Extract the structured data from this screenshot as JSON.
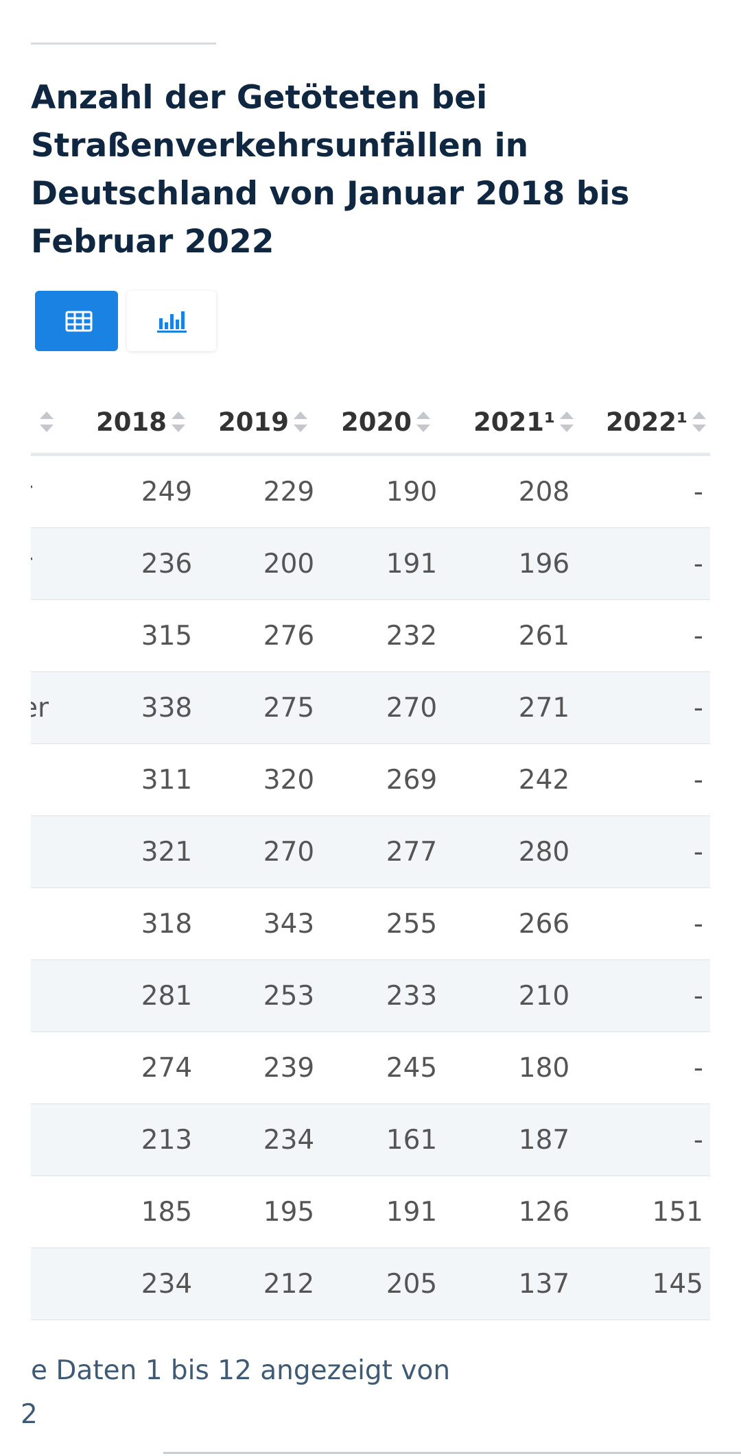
{
  "title": "Anzahl der Getöteten bei Straßenverkehrsunfällen in Deutschland von Januar 2018 bis Februar 2022",
  "table": {
    "headers": [
      "2018",
      "2019",
      "2020",
      "2021¹",
      "2022¹"
    ],
    "rows": [
      {
        "label": "r",
        "values": [
          "249",
          "229",
          "190",
          "208",
          "-"
        ]
      },
      {
        "label": "r",
        "values": [
          "236",
          "200",
          "191",
          "196",
          "-"
        ]
      },
      {
        "values": [
          "315",
          "276",
          "232",
          "261",
          "-"
        ]
      },
      {
        "label": "er",
        "values": [
          "338",
          "275",
          "270",
          "271",
          "-"
        ]
      },
      {
        "values": [
          "311",
          "320",
          "269",
          "242",
          "-"
        ]
      },
      {
        "values": [
          "321",
          "270",
          "277",
          "280",
          "-"
        ]
      },
      {
        "values": [
          "318",
          "343",
          "255",
          "266",
          "-"
        ]
      },
      {
        "values": [
          "281",
          "253",
          "233",
          "210",
          "-"
        ]
      },
      {
        "values": [
          "274",
          "239",
          "245",
          "180",
          "-"
        ]
      },
      {
        "values": [
          "213",
          "234",
          "161",
          "187",
          "-"
        ]
      },
      {
        "values": [
          "185",
          "195",
          "191",
          "126",
          "151"
        ]
      },
      {
        "values": [
          "234",
          "212",
          "205",
          "137",
          "145"
        ]
      }
    ]
  },
  "footer": {
    "lines": [
      "e Daten 1 bis 12 angezeigt von",
      "2"
    ]
  }
}
